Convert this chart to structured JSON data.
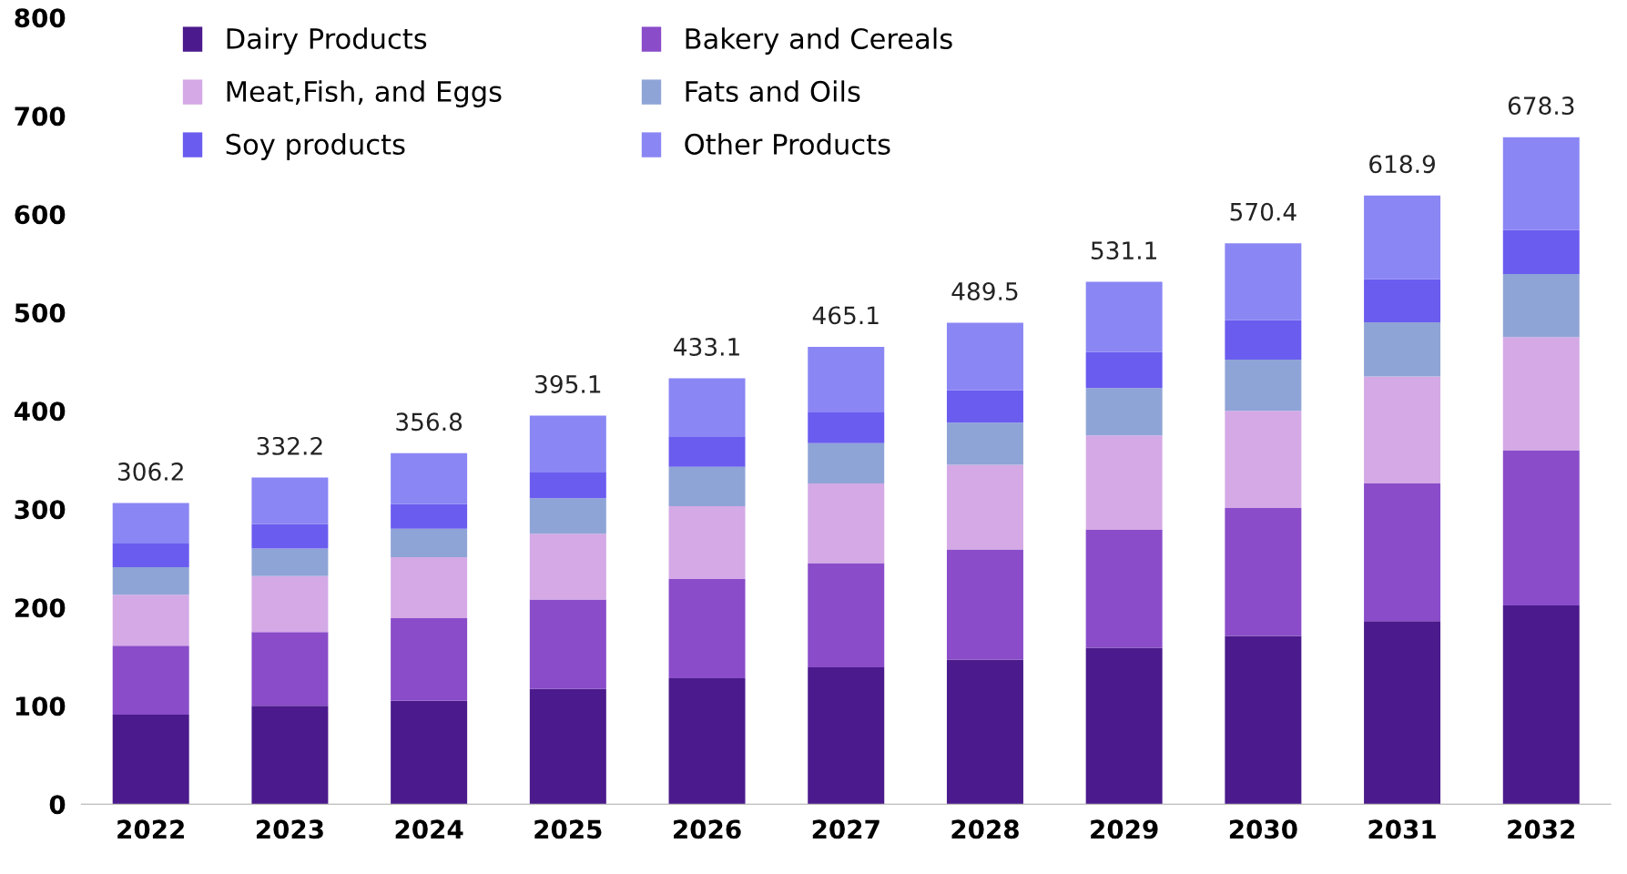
{
  "chart_data": {
    "type": "bar",
    "stacked": true,
    "categories": [
      "2022",
      "2023",
      "2024",
      "2025",
      "2026",
      "2027",
      "2028",
      "2029",
      "2030",
      "2031",
      "2032"
    ],
    "series": [
      {
        "name": "Dairy Products",
        "color": "#4b1a8c",
        "values": [
          91,
          100,
          105,
          117,
          128,
          139,
          147,
          159,
          171,
          186,
          202
        ]
      },
      {
        "name": "Bakery and Cereals",
        "color": "#8a4cc9",
        "values": [
          70,
          75,
          84,
          91,
          101,
          106,
          112,
          120,
          130,
          140,
          158
        ]
      },
      {
        "name": "Meat,Fish, and Eggs",
        "color": "#d4a9e6",
        "values": [
          52,
          57,
          62,
          67,
          74,
          81,
          86,
          96,
          99,
          109,
          115
        ]
      },
      {
        "name": "Fats and Oils",
        "color": "#8fa4d6",
        "values": [
          28,
          28,
          29,
          36,
          40,
          41,
          43,
          48,
          52,
          55,
          64
        ]
      },
      {
        "name": "Soy products",
        "color": "#6a5cef",
        "values": [
          24,
          25,
          25,
          27,
          31,
          32,
          33,
          37,
          40,
          44,
          45
        ]
      },
      {
        "name": "Other Products",
        "color": "#8a86f4",
        "values": [
          41.2,
          47.2,
          51.8,
          57.1,
          59.1,
          66.1,
          68.5,
          71.1,
          78.4,
          84.9,
          94.3
        ]
      }
    ],
    "totals": [
      "306.2",
      "332.2",
      "356.8",
      "395.1",
      "433.1",
      "465.1",
      "489.5",
      "531.1",
      "570.4",
      "618.9",
      "678.3"
    ],
    "ylim": [
      0,
      800
    ],
    "yticks": [
      0,
      100,
      200,
      300,
      400,
      500,
      600,
      700,
      800
    ],
    "grid": false,
    "legend": "top left"
  }
}
